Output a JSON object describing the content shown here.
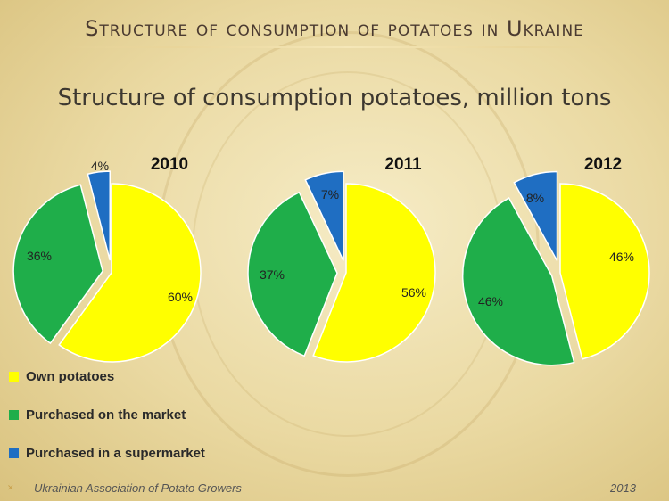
{
  "slide": {
    "title": "Structure of consumption of potatoes in Ukraine",
    "footer_left": "Ukrainian Association of Potato Growers",
    "footer_right": "2013"
  },
  "chart_data": {
    "type": "pie",
    "title": "Structure of consumption potatoes, million tons",
    "categories": [
      "Own potatoes",
      "Purchased on the market",
      "Purchased in a supermarket"
    ],
    "colors": [
      "#ffff00",
      "#1fae4a",
      "#1f6ec2"
    ],
    "legend_position": "bottom-left",
    "pies": [
      {
        "year": "2010",
        "values": [
          60,
          36,
          4
        ],
        "labels": [
          "60%",
          "36%",
          "4%"
        ]
      },
      {
        "year": "2011",
        "values": [
          56,
          37,
          7
        ],
        "labels": [
          "56%",
          "37%",
          "7%"
        ]
      },
      {
        "year": "2012",
        "values": [
          46,
          46,
          8
        ],
        "labels": [
          "46%",
          "46%",
          "8%"
        ]
      }
    ]
  }
}
